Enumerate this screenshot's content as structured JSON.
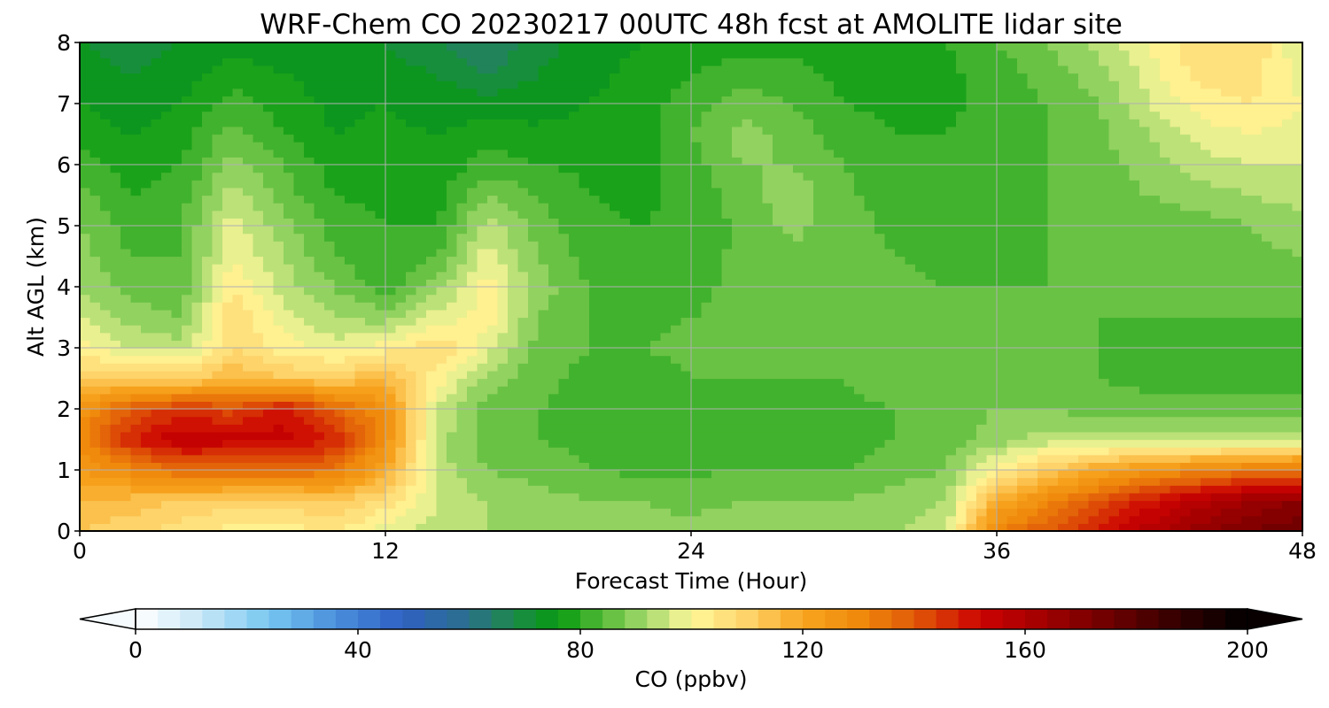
{
  "chart_data": {
    "type": "heatmap",
    "title": "WRF-Chem CO  20230217 00UTC 48h fcst at AMOLITE lidar site",
    "xlabel": "Forecast Time (Hour)",
    "ylabel": "Alt AGL (km)",
    "xlim": [
      0,
      48
    ],
    "ylim": [
      0,
      8
    ],
    "x_ticks": [
      "0",
      "12",
      "24",
      "36",
      "48"
    ],
    "y_ticks": [
      "0",
      "1",
      "2",
      "3",
      "4",
      "5",
      "6",
      "7",
      "8"
    ],
    "grid": true,
    "x": [
      0,
      2,
      4,
      6,
      8,
      10,
      12,
      14,
      16,
      18,
      20,
      22,
      24,
      26,
      28,
      30,
      32,
      34,
      36,
      38,
      40,
      42,
      44,
      46,
      48
    ],
    "y": [
      0,
      0.5,
      1,
      1.5,
      2,
      2.5,
      3,
      3.5,
      4,
      4.5,
      5,
      5.5,
      6,
      6.5,
      7,
      7.5,
      8
    ],
    "z": [
      [
        112,
        110,
        106,
        102,
        102,
        104,
        98,
        94,
        92,
        90,
        90,
        89,
        89,
        90,
        90,
        90,
        92,
        94,
        132,
        140,
        148,
        158,
        166,
        172,
        176
      ],
      [
        115,
        114,
        112,
        110,
        110,
        112,
        106,
        96,
        92,
        90,
        88,
        88,
        87,
        88,
        88,
        88,
        90,
        92,
        118,
        130,
        140,
        150,
        158,
        165,
        168
      ],
      [
        124,
        130,
        136,
        136,
        136,
        134,
        120,
        94,
        88,
        86,
        84,
        83,
        83,
        84,
        84,
        84,
        86,
        88,
        102,
        112,
        120,
        126,
        130,
        134,
        136
      ],
      [
        130,
        148,
        156,
        154,
        154,
        148,
        128,
        94,
        86,
        84,
        83,
        82,
        82,
        82,
        82,
        82,
        84,
        86,
        90,
        94,
        94,
        94,
        94,
        94,
        94
      ],
      [
        126,
        140,
        146,
        142,
        150,
        138,
        128,
        96,
        86,
        84,
        83,
        82,
        82,
        82,
        82,
        83,
        84,
        86,
        88,
        88,
        86,
        85,
        85,
        85,
        85
      ],
      [
        112,
        110,
        110,
        116,
        112,
        112,
        116,
        102,
        90,
        85,
        83,
        82,
        84,
        84,
        84,
        84,
        86,
        86,
        86,
        85,
        84,
        83,
        83,
        83,
        83
      ],
      [
        102,
        96,
        94,
        108,
        102,
        98,
        102,
        108,
        98,
        86,
        84,
        84,
        85,
        86,
        86,
        86,
        88,
        86,
        85,
        84,
        84,
        83,
        83,
        83,
        83
      ],
      [
        96,
        90,
        88,
        108,
        98,
        92,
        90,
        98,
        102,
        88,
        84,
        83,
        84,
        85,
        86,
        86,
        86,
        85,
        84,
        84,
        84,
        84,
        84,
        84,
        84
      ],
      [
        92,
        86,
        85,
        104,
        94,
        88,
        82,
        90,
        102,
        90,
        84,
        82,
        83,
        85,
        86,
        86,
        85,
        84,
        84,
        84,
        84,
        84,
        84,
        85,
        86
      ],
      [
        90,
        84,
        84,
        100,
        92,
        84,
        80,
        84,
        98,
        88,
        82,
        81,
        82,
        85,
        87,
        86,
        84,
        83,
        83,
        84,
        84,
        85,
        86,
        87,
        88
      ],
      [
        88,
        82,
        84,
        98,
        90,
        82,
        80,
        80,
        94,
        86,
        81,
        80,
        81,
        85,
        89,
        86,
        83,
        82,
        82,
        84,
        85,
        86,
        86,
        88,
        90
      ],
      [
        86,
        80,
        82,
        94,
        86,
        80,
        79,
        78,
        88,
        84,
        80,
        79,
        81,
        86,
        91,
        85,
        82,
        81,
        82,
        84,
        86,
        88,
        90,
        92,
        94
      ],
      [
        82,
        78,
        80,
        90,
        84,
        78,
        78,
        77,
        82,
        80,
        79,
        79,
        82,
        88,
        88,
        84,
        81,
        80,
        82,
        84,
        86,
        90,
        94,
        96,
        96
      ],
      [
        78,
        76,
        78,
        86,
        80,
        76,
        77,
        76,
        78,
        77,
        78,
        78,
        84,
        90,
        86,
        82,
        80,
        80,
        82,
        84,
        87,
        92,
        98,
        100,
        98
      ],
      [
        76,
        74,
        76,
        82,
        78,
        75,
        76,
        74,
        74,
        74,
        76,
        78,
        82,
        86,
        84,
        80,
        79,
        79,
        82,
        84,
        88,
        96,
        102,
        104,
        100
      ],
      [
        74,
        72,
        74,
        78,
        76,
        74,
        74,
        72,
        68,
        72,
        75,
        77,
        80,
        82,
        81,
        79,
        78,
        79,
        82,
        86,
        90,
        98,
        106,
        106,
        98
      ],
      [
        72,
        70,
        72,
        74,
        74,
        72,
        72,
        68,
        64,
        70,
        74,
        76,
        78,
        78,
        79,
        78,
        78,
        80,
        84,
        88,
        94,
        100,
        108,
        108,
        96
      ]
    ],
    "colorbar": {
      "label": "CO  (ppbv)",
      "min": 0,
      "max": 200,
      "step": 4,
      "extend": "both",
      "ticks": [
        "0",
        "40",
        "80",
        "120",
        "160",
        "200"
      ]
    },
    "colormap_stops": [
      {
        "v": 0,
        "c": "#ffffff"
      },
      {
        "v": 12,
        "c": "#c6e6f7"
      },
      {
        "v": 24,
        "c": "#78c7f0"
      },
      {
        "v": 36,
        "c": "#4a8fdb"
      },
      {
        "v": 48,
        "c": "#3060c4"
      },
      {
        "v": 60,
        "c": "#2a6f8a"
      },
      {
        "v": 68,
        "c": "#1c8a4a"
      },
      {
        "v": 76,
        "c": "#069a10"
      },
      {
        "v": 84,
        "c": "#55ba36"
      },
      {
        "v": 92,
        "c": "#a6da6e"
      },
      {
        "v": 100,
        "c": "#fff79a"
      },
      {
        "v": 110,
        "c": "#fdd36a"
      },
      {
        "v": 120,
        "c": "#f8a520"
      },
      {
        "v": 130,
        "c": "#f08a0c"
      },
      {
        "v": 140,
        "c": "#e05a08"
      },
      {
        "v": 152,
        "c": "#cc0202"
      },
      {
        "v": 164,
        "c": "#9e0000"
      },
      {
        "v": 176,
        "c": "#6a0000"
      },
      {
        "v": 188,
        "c": "#300000"
      },
      {
        "v": 200,
        "c": "#000000"
      }
    ]
  }
}
